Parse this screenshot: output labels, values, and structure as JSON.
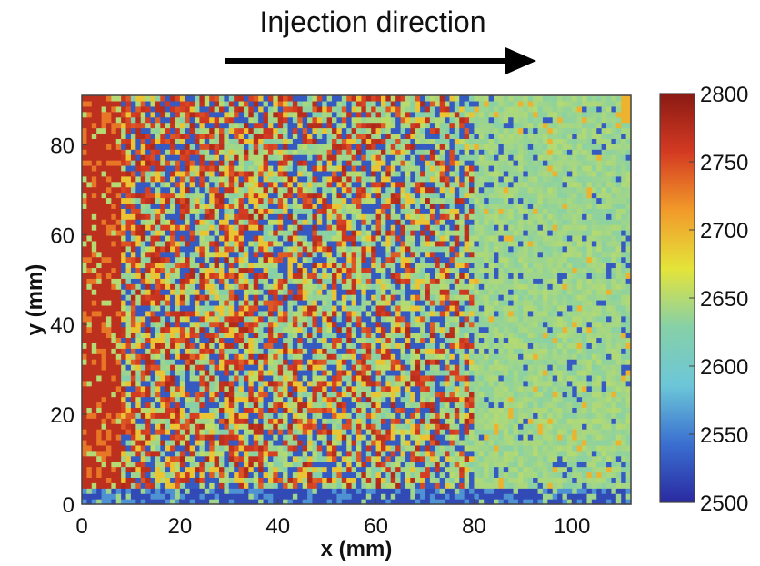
{
  "chart_data": {
    "type": "heatmap",
    "title": "",
    "annotation": "Injection direction",
    "xlabel": "x (mm)",
    "ylabel": "y (mm)",
    "xlim": [
      0,
      112
    ],
    "ylim": [
      0,
      91
    ],
    "x_ticks": [
      0,
      20,
      40,
      60,
      80,
      100
    ],
    "y_ticks": [
      0,
      20,
      40,
      60,
      80
    ],
    "colorbar": {
      "range": [
        2500,
        2800
      ],
      "ticks": [
        2500,
        2550,
        2600,
        2650,
        2700,
        2750,
        2800
      ],
      "colormap": "jet",
      "colors": [
        "#2a2aa0",
        "#3a6fd0",
        "#6cc6d8",
        "#86d0a8",
        "#e4e43a",
        "#f29a2a",
        "#d43a22",
        "#8a1a14"
      ]
    },
    "pattern_summary": [
      {
        "x_range": [
          0,
          10
        ],
        "level": "high (~2750-2800)"
      },
      {
        "x_range": [
          10,
          80
        ],
        "level": "mixed 2500-2800, mottled"
      },
      {
        "x_range": [
          80,
          112
        ],
        "level": "mostly ~2640 with sparse low (~2530) speckles"
      },
      {
        "y_range": [
          0,
          4
        ],
        "level": "low (~2520) band along bottom edge"
      }
    ]
  }
}
